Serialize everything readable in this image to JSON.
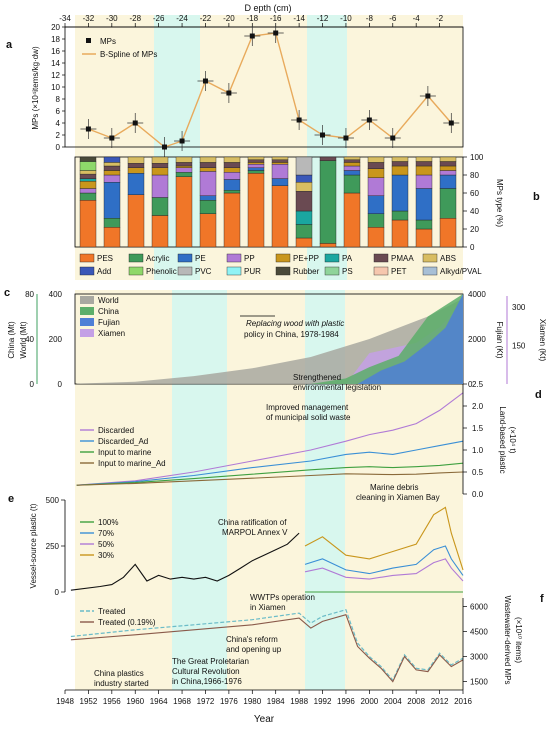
{
  "colors": {
    "bg": "#fbf5dc",
    "band": "#d8f7ee",
    "spline": "#e8aa5c",
    "purple": "#b07ad6"
  },
  "axes": {
    "depth_label": "D epth (cm)",
    "depth_ticks": [
      "-34",
      "-32",
      "-30",
      "-28",
      "-26",
      "-24",
      "-22",
      "-20",
      "-18",
      "-16",
      "-14",
      "-12",
      "-10",
      "-8",
      "-6",
      "-4",
      "-2"
    ],
    "year_label": "Year",
    "year_ticks": [
      "1948",
      "1952",
      "1956",
      "1960",
      "1964",
      "1968",
      "1972",
      "1976",
      "1980",
      "1984",
      "1988",
      "1992",
      "1996",
      "2000",
      "2004",
      "2008",
      "2012",
      "2016"
    ]
  },
  "chart_data": [
    {
      "panel": "a",
      "type": "scatter",
      "ylabel": "MPs (×10⁴items/kg·dw)",
      "yticks": [
        "0",
        "2",
        "4",
        "6",
        "8",
        "10",
        "12",
        "14",
        "16",
        "18",
        "20"
      ],
      "ylim": [
        0,
        20
      ],
      "x": [
        -32,
        -30,
        -28,
        -25.5,
        -24,
        -22,
        -20,
        -18,
        -16,
        -14,
        -12,
        -10,
        -8,
        -6,
        -3,
        -1
      ],
      "y": [
        3,
        1.5,
        4,
        0,
        1,
        11,
        9,
        18.5,
        19,
        4.5,
        2,
        1.5,
        4.5,
        1.5,
        8.5,
        4
      ],
      "legend": [
        "MPs",
        "B-Spline of MPs"
      ]
    },
    {
      "panel": "b",
      "type": "bar",
      "ylabel": "MPs type (%)",
      "yticks": [
        "0",
        "20",
        "40",
        "60",
        "80",
        "100"
      ],
      "legend": [
        {
          "name": "PES",
          "color": "#f07628"
        },
        {
          "name": "Acrylic",
          "color": "#3f9a5a"
        },
        {
          "name": "PE",
          "color": "#2f6fc6"
        },
        {
          "name": "PP",
          "color": "#b07ad6"
        },
        {
          "name": "PE+PP",
          "color": "#c9961c"
        },
        {
          "name": "PA",
          "color": "#1aa6a0"
        },
        {
          "name": "PMAA",
          "color": "#6a4a52"
        },
        {
          "name": "ABS",
          "color": "#d8bd62"
        },
        {
          "name": "Add",
          "color": "#3a57b8"
        },
        {
          "name": "Phenolic",
          "color": "#8ed86a"
        },
        {
          "name": "PVC",
          "color": "#b8b8b8"
        },
        {
          "name": "PUR",
          "color": "#8ff3f5"
        },
        {
          "name": "Rubber",
          "color": "#4a4a3a"
        },
        {
          "name": "PS",
          "color": "#8fd49a"
        },
        {
          "name": "PET",
          "color": "#f6c7ae"
        },
        {
          "name": "Alkyd/PVAL",
          "color": "#a7bfd6"
        }
      ],
      "bars": [
        [
          [
            "PES",
            52
          ],
          [
            "Acrylic",
            8
          ],
          [
            "PE",
            0
          ],
          [
            "PP",
            5
          ],
          [
            "PE+PP",
            8
          ],
          [
            "PA",
            3
          ],
          [
            "PMAA",
            5
          ],
          [
            "ABS",
            4
          ],
          [
            "Phenolic",
            10
          ],
          [
            "Rubber",
            5
          ]
        ],
        [
          [
            "PES",
            22
          ],
          [
            "Acrylic",
            10
          ],
          [
            "PE",
            40
          ],
          [
            "PP",
            8
          ],
          [
            "PE+PP",
            5
          ],
          [
            "PMAA",
            5
          ],
          [
            "ABS",
            4
          ],
          [
            "Add",
            6
          ]
        ],
        [
          [
            "PES",
            58
          ],
          [
            "Acrylic",
            0
          ],
          [
            "PE",
            24
          ],
          [
            "PP",
            0
          ],
          [
            "PE+PP",
            6
          ],
          [
            "PMAA",
            5
          ],
          [
            "ABS",
            7
          ]
        ],
        [
          [
            "PES",
            35
          ],
          [
            "Acrylic",
            20
          ],
          [
            "PE",
            0
          ],
          [
            "PP",
            25
          ],
          [
            "PE+PP",
            8
          ],
          [
            "PMAA",
            5
          ],
          [
            "ABS",
            7
          ]
        ],
        [
          [
            "PES",
            78
          ],
          [
            "Acrylic",
            5
          ],
          [
            "PP",
            5
          ],
          [
            "PE+PP",
            2
          ],
          [
            "PMAA",
            4
          ],
          [
            "ABS",
            6
          ]
        ],
        [
          [
            "PES",
            37
          ],
          [
            "Acrylic",
            15
          ],
          [
            "PE",
            5
          ],
          [
            "PP",
            27
          ],
          [
            "PE+PP",
            4
          ],
          [
            "PMAA",
            6
          ],
          [
            "ABS",
            6
          ]
        ],
        [
          [
            "PES",
            60
          ],
          [
            "Acrylic",
            3
          ],
          [
            "PE",
            12
          ],
          [
            "PP",
            8
          ],
          [
            "PE+PP",
            5
          ],
          [
            "PMAA",
            6
          ],
          [
            "ABS",
            6
          ]
        ],
        [
          [
            "PES",
            82
          ],
          [
            "Acrylic",
            3
          ],
          [
            "PE",
            3
          ],
          [
            "PP",
            4
          ],
          [
            "PE+PP",
            2
          ],
          [
            "PMAA",
            3
          ],
          [
            "ABS",
            3
          ]
        ],
        [
          [
            "PES",
            68
          ],
          [
            "Acrylic",
            0
          ],
          [
            "PE",
            8
          ],
          [
            "PP",
            16
          ],
          [
            "PE+PP",
            2
          ],
          [
            "PMAA",
            3
          ],
          [
            "ABS",
            3
          ]
        ],
        [
          [
            "PES",
            10
          ],
          [
            "Acrylic",
            15
          ],
          [
            "PE",
            0
          ],
          [
            "PP",
            0
          ],
          [
            "PA",
            15
          ],
          [
            "PMAA",
            22
          ],
          [
            "ABS",
            10
          ],
          [
            "Add",
            8
          ],
          [
            "PVC",
            20
          ]
        ],
        [
          [
            "PES",
            4
          ],
          [
            "Acrylic",
            92
          ],
          [
            "PMAA",
            4
          ]
        ],
        [
          [
            "PES",
            60
          ],
          [
            "Acrylic",
            20
          ],
          [
            "PE",
            5
          ],
          [
            "PP",
            5
          ],
          [
            "PE+PP",
            4
          ],
          [
            "PMAA",
            3
          ],
          [
            "ABS",
            3
          ]
        ],
        [
          [
            "PES",
            22
          ],
          [
            "Acrylic",
            15
          ],
          [
            "PE",
            20
          ],
          [
            "PP",
            20
          ],
          [
            "PE+PP",
            10
          ],
          [
            "PMAA",
            7
          ],
          [
            "ABS",
            6
          ]
        ],
        [
          [
            "PES",
            30
          ],
          [
            "Acrylic",
            10
          ],
          [
            "PE",
            40
          ],
          [
            "PP",
            0
          ],
          [
            "PE+PP",
            10
          ],
          [
            "PMAA",
            5
          ],
          [
            "ABS",
            5
          ]
        ],
        [
          [
            "PES",
            20
          ],
          [
            "Acrylic",
            10
          ],
          [
            "PE",
            35
          ],
          [
            "PP",
            15
          ],
          [
            "PE+PP",
            10
          ],
          [
            "PMAA",
            5
          ],
          [
            "ABS",
            5
          ]
        ],
        [
          [
            "PES",
            32
          ],
          [
            "Acrylic",
            33
          ],
          [
            "PE",
            15
          ],
          [
            "PP",
            5
          ],
          [
            "PE+PP",
            5
          ],
          [
            "PMAA",
            5
          ],
          [
            "ABS",
            5
          ]
        ]
      ]
    },
    {
      "panel": "c",
      "type": "area",
      "ylabel_world": "World (Mt)",
      "ylabel_china": "China (Mt)",
      "ylabel_fujian": "Fujian (Kt)",
      "ylabel_xiamen": "Xiamen (Kt)",
      "yticks_world": [
        "0",
        "200",
        "400"
      ],
      "yticks_china": [
        "0",
        "40",
        "80"
      ],
      "yticks_fujian": [
        "0",
        "2000",
        "4000"
      ],
      "yticks_xiamen": [
        "150",
        "300"
      ],
      "legend": [
        "World",
        "China",
        "Fujian",
        "Xiamen"
      ],
      "series_colors": {
        "World": "#a8a8a0",
        "China": "#5cae6a",
        "Fujian": "#4f7fd6",
        "Xiamen": "#c4a0e6"
      },
      "world_x": [
        1950,
        1960,
        1970,
        1980,
        1990,
        2000,
        2005,
        2010,
        2016
      ],
      "world_y": [
        2,
        10,
        35,
        70,
        120,
        200,
        250,
        300,
        380
      ],
      "china_x": [
        1990,
        1996,
        2000,
        2005,
        2010,
        2016
      ],
      "china_y": [
        0,
        5,
        15,
        25,
        60,
        80
      ],
      "fujian_x": [
        1998,
        2002,
        2006,
        2010,
        2013,
        2016
      ],
      "fujian_y": [
        0,
        600,
        1000,
        1800,
        2500,
        4000
      ],
      "xiamen_x": [
        1996,
        2000,
        2004,
        2008,
        2012,
        2016
      ],
      "xiamen_y": [
        0,
        120,
        140,
        160,
        220,
        320
      ],
      "annotations": [
        "Replacing wood with plastic",
        "policy in China, 1978-1984"
      ]
    },
    {
      "panel": "d",
      "type": "line",
      "ylabel": "Land-based plastic",
      "ylabel2": "(×10⁴ t)",
      "yticks": [
        "0.0",
        "0.5",
        "1.0",
        "1.5",
        "2.0",
        "2.5"
      ],
      "ylim": [
        0,
        2.5
      ],
      "legend": [
        "Discarded",
        "Discarded_Ad",
        "Input to marine",
        "Input to marine_Ad"
      ],
      "series_colors": [
        "#b07ad6",
        "#3a8fd6",
        "#3fa040",
        "#8a6a3a"
      ],
      "x": [
        1950,
        1960,
        1970,
        1980,
        1990,
        1996,
        2000,
        2004,
        2008,
        2012,
        2016
      ],
      "series": [
        [
          0.2,
          0.3,
          0.5,
          0.75,
          1.0,
          1.2,
          1.35,
          1.45,
          1.6,
          1.9,
          2.3
        ],
        [
          0.2,
          0.28,
          0.42,
          0.6,
          0.75,
          0.9,
          0.95,
          0.9,
          1.0,
          1.1,
          1.2
        ],
        [
          0.2,
          0.26,
          0.35,
          0.45,
          0.55,
          0.6,
          0.62,
          0.6,
          0.62,
          0.65,
          0.7
        ],
        [
          0.2,
          0.24,
          0.3,
          0.36,
          0.42,
          0.46,
          0.45,
          0.44,
          0.45,
          0.48,
          0.5
        ]
      ],
      "annotations": [
        "Strengthened",
        "environmental legislation",
        "Improved management",
        "of municipal solid waste",
        "Marine debris",
        "cleaning in Xiamen Bay"
      ]
    },
    {
      "panel": "e",
      "type": "line",
      "ylabel": "Vessel-source plastic (t)",
      "yticks": [
        "0",
        "250",
        "500"
      ],
      "ylim": [
        0,
        500
      ],
      "legend": [
        "100%",
        "70%",
        "50%",
        "30%"
      ],
      "series_colors": [
        "#3fa040",
        "#3a8fd6",
        "#b07ad6",
        "#c9961c"
      ],
      "x": [
        1949,
        1954,
        1956,
        1958,
        1960,
        1962,
        1964,
        1966,
        1968,
        1970,
        1972,
        1974,
        1976,
        1978,
        1980,
        1982,
        1984,
        1986,
        1988
      ],
      "y": [
        10,
        30,
        40,
        80,
        150,
        60,
        90,
        70,
        80,
        70,
        80,
        60,
        90,
        130,
        170,
        200,
        230,
        260,
        320
      ],
      "after_x": [
        1989,
        1992,
        1996,
        2000,
        2004,
        2008,
        2011,
        2013,
        2014,
        2016
      ],
      "after_series": [
        [
          0,
          0,
          0,
          0,
          0,
          0,
          0,
          0,
          0,
          0
        ],
        [
          150,
          180,
          120,
          100,
          130,
          150,
          230,
          250,
          180,
          90
        ],
        [
          110,
          130,
          80,
          70,
          90,
          100,
          160,
          180,
          130,
          60
        ],
        [
          250,
          300,
          200,
          180,
          220,
          260,
          420,
          460,
          320,
          120
        ]
      ],
      "annotations": [
        "China ratification of",
        "MARPOL Annex V"
      ]
    },
    {
      "panel": "f",
      "type": "line",
      "ylabel": "Wastewater-derived MPs",
      "ylabel2": "(×10¹⁰ items)",
      "yticks": [
        "1500",
        "3000",
        "4500",
        "6000"
      ],
      "ylim": [
        1000,
        6500
      ],
      "legend": [
        "Treated",
        "Treated (0.19%)"
      ],
      "x": [
        1949,
        1960,
        1970,
        1980,
        1988,
        1990,
        1992,
        1996,
        1998,
        2000,
        2002,
        2004,
        2006,
        2008,
        2010,
        2012,
        2014,
        2016
      ],
      "treated": [
        4200,
        4600,
        4900,
        5200,
        5600,
        5000,
        5400,
        5800,
        3800,
        3000,
        2400,
        1600,
        3100,
        2300,
        2200,
        3200,
        2500,
        2900
      ],
      "treated_019": [
        4000,
        4300,
        4600,
        4900,
        5300,
        4700,
        5100,
        5500,
        3600,
        2900,
        2300,
        1500,
        3000,
        2200,
        2100,
        3100,
        2400,
        2800
      ],
      "annotations": [
        "WWTPs operation",
        "in Xiamen",
        "China's reform",
        "and opening up",
        "The Great Proletarian",
        "Cultural Revolution",
        "in China,1966-1976",
        "China plastics",
        "industry started"
      ]
    }
  ],
  "panel_labels": {
    "a": "a",
    "b": "b",
    "c": "c",
    "d": "d",
    "e": "e",
    "f": "f"
  }
}
